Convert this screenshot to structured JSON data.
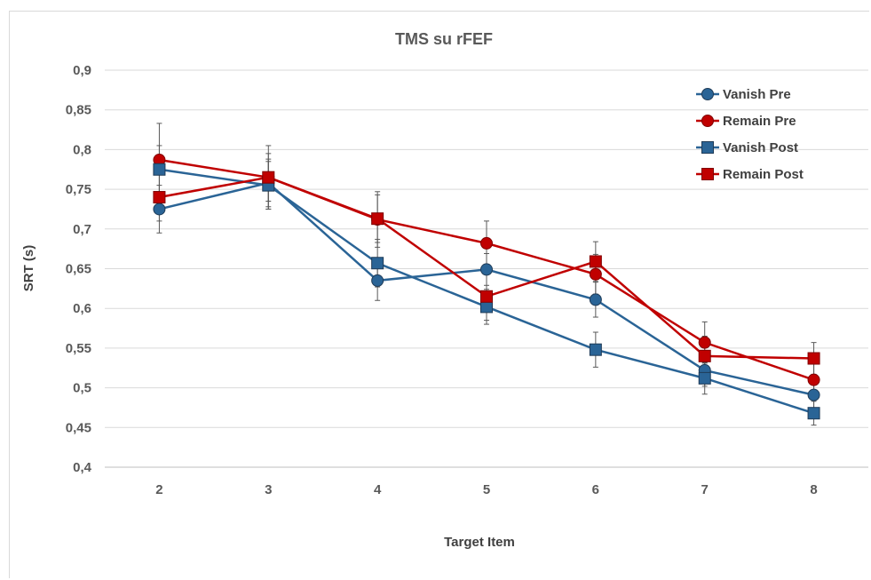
{
  "chart_data": {
    "type": "line",
    "title": "TMS su rFEF",
    "xlabel": "Target Item",
    "ylabel": "SRT (s)",
    "categories": [
      "2",
      "3",
      "4",
      "5",
      "6",
      "7",
      "8"
    ],
    "ylim": [
      0.4,
      0.9
    ],
    "yticks": [
      0.4,
      0.45,
      0.5,
      0.55,
      0.6,
      0.65,
      0.7,
      0.75,
      0.8,
      0.85,
      0.9
    ],
    "ytick_labels": [
      "0,4",
      "0,45",
      "0,5",
      "0,55",
      "0,6",
      "0,65",
      "0,7",
      "0,75",
      "0,8",
      "0,85",
      "0,9"
    ],
    "grid": true,
    "legend_position": "top-right",
    "error_bars": true,
    "series": [
      {
        "name": "Vanish Pre",
        "color": "#2a6496",
        "marker": "circle",
        "values": [
          0.725,
          0.758,
          0.635,
          0.649,
          0.611,
          0.522,
          0.491
        ],
        "errors": [
          0.03,
          0.03,
          0.025,
          0.02,
          0.022,
          0.02,
          0.02
        ]
      },
      {
        "name": "Remain Pre",
        "color": "#c00000",
        "marker": "circle",
        "values": [
          0.787,
          0.765,
          0.712,
          0.682,
          0.643,
          0.557,
          0.51
        ],
        "errors": [
          0.046,
          0.04,
          0.035,
          0.028,
          0.025,
          0.026,
          0.02
        ]
      },
      {
        "name": "Vanish Post",
        "color": "#2a6496",
        "marker": "square",
        "values": [
          0.775,
          0.755,
          0.657,
          0.602,
          0.548,
          0.512,
          0.468
        ],
        "errors": [
          0.03,
          0.03,
          0.03,
          0.022,
          0.022,
          0.02,
          0.015
        ]
      },
      {
        "name": "Remain Post",
        "color": "#c00000",
        "marker": "square",
        "values": [
          0.74,
          0.765,
          0.713,
          0.615,
          0.659,
          0.54,
          0.537
        ],
        "errors": [
          0.03,
          0.03,
          0.03,
          0.03,
          0.025,
          0.025,
          0.02
        ]
      }
    ]
  }
}
